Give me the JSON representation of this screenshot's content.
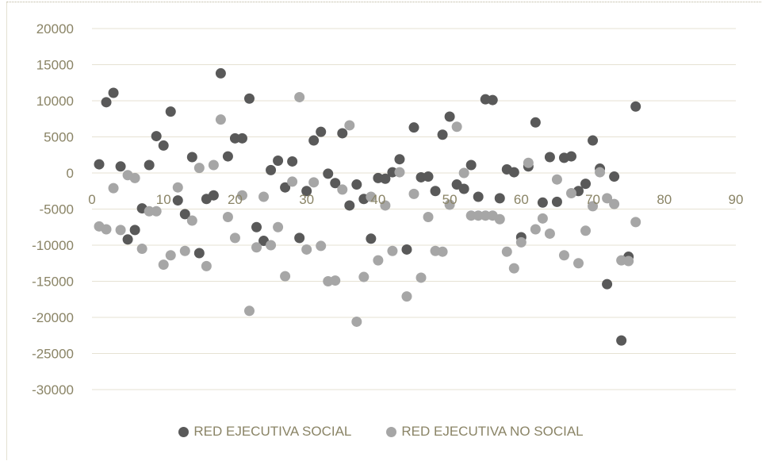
{
  "chart_data": {
    "type": "scatter",
    "title": "",
    "xlabel": "",
    "ylabel": "",
    "xlim": [
      0,
      90
    ],
    "ylim": [
      -30000,
      20000
    ],
    "x_ticks": [
      "0",
      "10",
      "20",
      "30",
      "40",
      "50",
      "60",
      "70",
      "80",
      "90"
    ],
    "y_ticks": [
      "20000",
      "15000",
      "10000",
      "5000",
      "0",
      "-5000",
      "-10000",
      "-15000",
      "-20000",
      "-25000",
      "-30000"
    ],
    "grid": "horizontal",
    "legend_position": "bottom",
    "series": [
      {
        "name": "RED EJECUTIVA SOCIAL",
        "color": "#595959",
        "points": [
          [
            1,
            1200
          ],
          [
            2,
            9800
          ],
          [
            3,
            11100
          ],
          [
            4,
            900
          ],
          [
            5,
            -9200
          ],
          [
            6,
            -7900
          ],
          [
            7,
            -4900
          ],
          [
            8,
            1100
          ],
          [
            9,
            5100
          ],
          [
            10,
            3800
          ],
          [
            11,
            8500
          ],
          [
            12,
            -3800
          ],
          [
            13,
            -5700
          ],
          [
            14,
            2200
          ],
          [
            15,
            -11100
          ],
          [
            16,
            -3600
          ],
          [
            17,
            -3100
          ],
          [
            18,
            13800
          ],
          [
            19,
            2300
          ],
          [
            20,
            4800
          ],
          [
            21,
            4800
          ],
          [
            22,
            10300
          ],
          [
            23,
            -7500
          ],
          [
            24,
            -9400
          ],
          [
            25,
            400
          ],
          [
            26,
            1700
          ],
          [
            27,
            -2000
          ],
          [
            28,
            1600
          ],
          [
            29,
            -9000
          ],
          [
            30,
            -2500
          ],
          [
            31,
            4500
          ],
          [
            32,
            5700
          ],
          [
            33,
            -100
          ],
          [
            34,
            -1400
          ],
          [
            35,
            5500
          ],
          [
            36,
            -4500
          ],
          [
            37,
            -1600
          ],
          [
            38,
            -3600
          ],
          [
            39,
            -9100
          ],
          [
            40,
            -700
          ],
          [
            41,
            -800
          ],
          [
            42,
            100
          ],
          [
            43,
            1900
          ],
          [
            44,
            -10600
          ],
          [
            45,
            6300
          ],
          [
            46,
            -600
          ],
          [
            47,
            -500
          ],
          [
            48,
            -2500
          ],
          [
            49,
            5300
          ],
          [
            50,
            7800
          ],
          [
            51,
            -1600
          ],
          [
            52,
            -2200
          ],
          [
            53,
            1100
          ],
          [
            54,
            -3300
          ],
          [
            55,
            10200
          ],
          [
            56,
            10100
          ],
          [
            57,
            -3500
          ],
          [
            58,
            500
          ],
          [
            59,
            100
          ],
          [
            60,
            -8900
          ],
          [
            61,
            900
          ],
          [
            62,
            7000
          ],
          [
            63,
            -4100
          ],
          [
            64,
            2200
          ],
          [
            65,
            -4000
          ],
          [
            66,
            2100
          ],
          [
            67,
            2300
          ],
          [
            68,
            -2500
          ],
          [
            69,
            -1500
          ],
          [
            70,
            4500
          ],
          [
            71,
            600
          ],
          [
            72,
            -15400
          ],
          [
            73,
            -500
          ],
          [
            74,
            -23200
          ],
          [
            75,
            -11600
          ],
          [
            76,
            9200
          ]
        ]
      },
      {
        "name": "RED EJECUTIVA NO SOCIAL",
        "color": "#a6a6a6",
        "points": [
          [
            1,
            -7400
          ],
          [
            2,
            -7800
          ],
          [
            3,
            -2100
          ],
          [
            4,
            -7900
          ],
          [
            5,
            -300
          ],
          [
            6,
            -700
          ],
          [
            7,
            -10500
          ],
          [
            8,
            -5300
          ],
          [
            9,
            -5300
          ],
          [
            10,
            -12700
          ],
          [
            11,
            -11400
          ],
          [
            12,
            -2000
          ],
          [
            13,
            -10800
          ],
          [
            14,
            -6600
          ],
          [
            15,
            700
          ],
          [
            16,
            -12900
          ],
          [
            17,
            1100
          ],
          [
            18,
            7400
          ],
          [
            19,
            -6100
          ],
          [
            20,
            -9000
          ],
          [
            21,
            -3100
          ],
          [
            22,
            -19100
          ],
          [
            23,
            -10300
          ],
          [
            24,
            -3300
          ],
          [
            25,
            -10000
          ],
          [
            26,
            -7500
          ],
          [
            27,
            -14300
          ],
          [
            28,
            -1200
          ],
          [
            29,
            10500
          ],
          [
            30,
            -10600
          ],
          [
            31,
            -1300
          ],
          [
            32,
            -10100
          ],
          [
            33,
            -15000
          ],
          [
            34,
            -14900
          ],
          [
            35,
            -2300
          ],
          [
            36,
            6600
          ],
          [
            37,
            -20600
          ],
          [
            38,
            -14400
          ],
          [
            39,
            -3300
          ],
          [
            40,
            -12100
          ],
          [
            41,
            -4500
          ],
          [
            42,
            -10800
          ],
          [
            43,
            100
          ],
          [
            44,
            -17100
          ],
          [
            45,
            -2900
          ],
          [
            46,
            -14500
          ],
          [
            47,
            -6100
          ],
          [
            48,
            -10800
          ],
          [
            49,
            -10900
          ],
          [
            50,
            -4400
          ],
          [
            51,
            6400
          ],
          [
            52,
            0
          ],
          [
            53,
            -5900
          ],
          [
            54,
            -5900
          ],
          [
            55,
            -5900
          ],
          [
            56,
            -5900
          ],
          [
            57,
            -6400
          ],
          [
            58,
            -10900
          ],
          [
            59,
            -13200
          ],
          [
            60,
            -9600
          ],
          [
            61,
            1400
          ],
          [
            62,
            -7800
          ],
          [
            63,
            -6300
          ],
          [
            64,
            -8400
          ],
          [
            65,
            -900
          ],
          [
            66,
            -11400
          ],
          [
            67,
            -2800
          ],
          [
            68,
            -12500
          ],
          [
            69,
            -8000
          ],
          [
            70,
            -4600
          ],
          [
            71,
            100
          ],
          [
            72,
            -3500
          ],
          [
            73,
            -4300
          ],
          [
            74,
            -12100
          ],
          [
            75,
            -12200
          ],
          [
            76,
            -6800
          ]
        ]
      }
    ]
  }
}
